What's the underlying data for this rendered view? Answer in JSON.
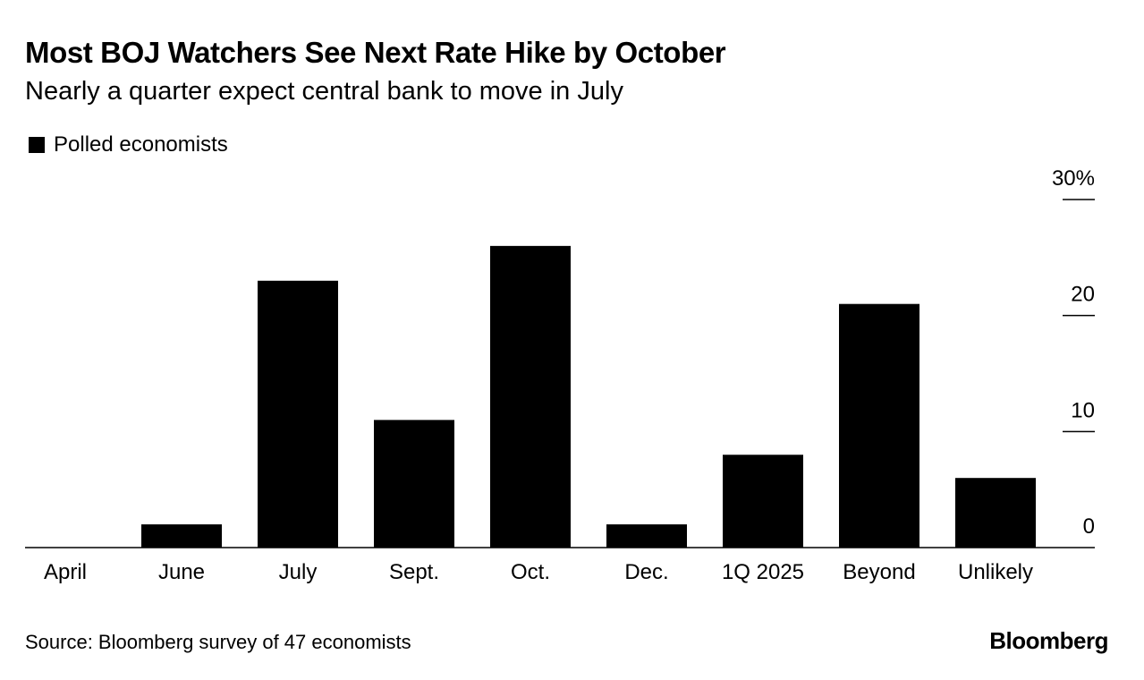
{
  "chart_data": {
    "type": "bar",
    "title": "Most BOJ Watchers See Next Rate Hike by October",
    "subtitle": "Nearly a quarter expect central bank to move in July",
    "legend": [
      "Polled economists"
    ],
    "categories": [
      "April",
      "June",
      "July",
      "Sept.",
      "Oct.",
      "Dec.",
      "1Q 2025",
      "Beyond",
      "Unlikely"
    ],
    "series": [
      {
        "name": "Polled economists",
        "values": [
          0,
          2,
          23,
          11,
          26,
          2,
          8,
          21,
          6
        ]
      }
    ],
    "ylim": [
      0,
      30
    ],
    "yticks": [
      0,
      10,
      20,
      30
    ],
    "ytick_labels": [
      "0",
      "10",
      "20",
      "30%"
    ],
    "xlabel": "",
    "ylabel": "",
    "source": "Source: Bloomberg survey of 47 economists",
    "colors": {
      "bar": "#000000"
    }
  },
  "branding": "Bloomberg"
}
